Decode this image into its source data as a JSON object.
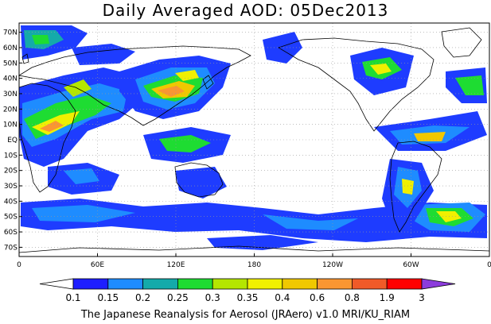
{
  "title": "Daily Averaged AOD: 05Dec2013",
  "credit": "The Japanese Reanalysis for Aerosol (JRAero) v1.0 MRI/KU_RIAM",
  "map": {
    "lat_labels": [
      "70N",
      "60N",
      "50N",
      "40N",
      "30N",
      "20N",
      "10N",
      "EQ",
      "10S",
      "20S",
      "30S",
      "40S",
      "50S",
      "60S",
      "70S"
    ],
    "lat_values": [
      70,
      60,
      50,
      40,
      30,
      20,
      10,
      0,
      -10,
      -20,
      -30,
      -40,
      -50,
      -60,
      -70
    ],
    "lon_labels": [
      "0",
      "60E",
      "120E",
      "180",
      "120W",
      "60W",
      "0"
    ],
    "lon_values": [
      0,
      60,
      120,
      180,
      240,
      300,
      360
    ],
    "lat_range": [
      -76,
      76
    ],
    "lon_range": [
      0,
      360
    ],
    "grid": true,
    "background_color": "#ffffff",
    "coastline_color": "#000000",
    "shading_colors": {
      "c1": "#1e3cff",
      "c2": "#1e8cff",
      "c3": "#14aaaa",
      "c4": "#1edc32",
      "c5": "#b4e600",
      "c6": "#f0f000",
      "c7": "#f0c800",
      "c8": "#fa9632",
      "c9": "#f05a28",
      "c10": "#ff0000",
      "c11": "#8c3cdc"
    }
  },
  "colorbar": {
    "labels": [
      "0.1",
      "0.15",
      "0.2",
      "0.25",
      "0.3",
      "0.35",
      "0.4",
      "0.6",
      "0.8",
      "1.9",
      "3"
    ],
    "colors": [
      "#ffffff",
      "#1e1eff",
      "#1e8cff",
      "#14aaaa",
      "#1edc32",
      "#b4e600",
      "#f0f000",
      "#f0c800",
      "#fa9632",
      "#f05a28",
      "#ff0000",
      "#8c3cdc"
    ]
  }
}
